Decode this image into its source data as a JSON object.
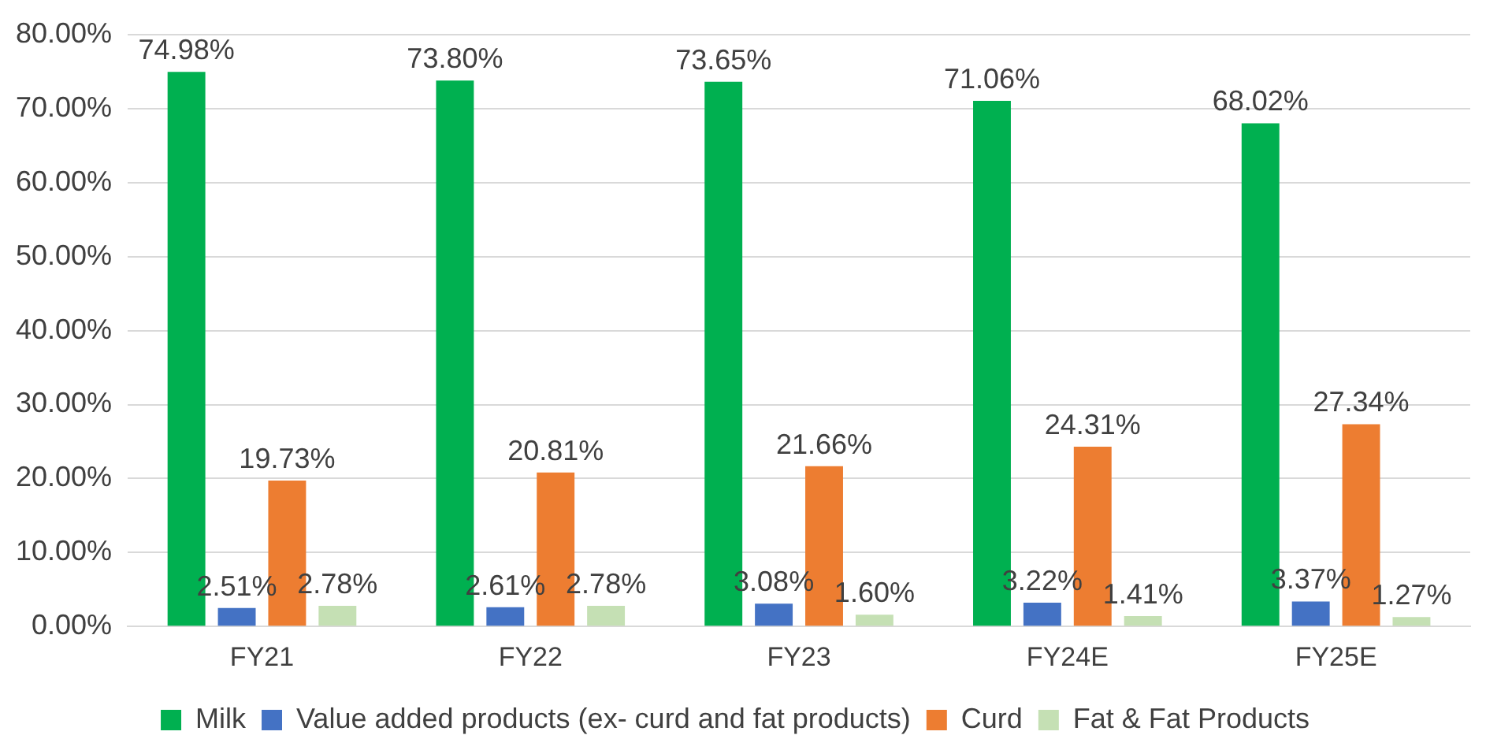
{
  "chart_data": {
    "type": "bar",
    "categories": [
      "FY21",
      "FY22",
      "FY23",
      "FY24E",
      "FY25E"
    ],
    "series": [
      {
        "name": "Milk",
        "color": "#00b050",
        "values": [
          74.98,
          73.8,
          73.65,
          71.06,
          68.02
        ],
        "value_labels": [
          "74.98%",
          "73.80%",
          "73.65%",
          "71.06%",
          "68.02%"
        ]
      },
      {
        "name": "Value added products (ex- curd and fat products)",
        "color": "#4472c4",
        "values": [
          2.51,
          2.61,
          3.08,
          3.22,
          3.37
        ],
        "value_labels": [
          "2.51%",
          "2.61%",
          "3.08%",
          "3.22%",
          "3.37%"
        ]
      },
      {
        "name": "Curd",
        "color": "#ed7d31",
        "values": [
          19.73,
          20.81,
          21.66,
          24.31,
          27.34
        ],
        "value_labels": [
          "19.73%",
          "20.81%",
          "21.66%",
          "24.31%",
          "27.34%"
        ]
      },
      {
        "name": "Fat & Fat Products",
        "color": "#c5e0b4",
        "values": [
          2.78,
          2.78,
          1.6,
          1.41,
          1.27
        ],
        "value_labels": [
          "2.78%",
          "2.78%",
          "1.60%",
          "1.41%",
          "1.27%"
        ]
      }
    ],
    "ylim": [
      0,
      80
    ],
    "yticks": [
      {
        "value": 0,
        "label": "0.00%"
      },
      {
        "value": 10,
        "label": "10.00%"
      },
      {
        "value": 20,
        "label": "20.00%"
      },
      {
        "value": 30,
        "label": "30.00%"
      },
      {
        "value": 40,
        "label": "40.00%"
      },
      {
        "value": 50,
        "label": "50.00%"
      },
      {
        "value": 60,
        "label": "60.00%"
      },
      {
        "value": 70,
        "label": "70.00%"
      },
      {
        "value": 80,
        "label": "80.00%"
      }
    ],
    "grid": "y",
    "legend": "bottom"
  }
}
